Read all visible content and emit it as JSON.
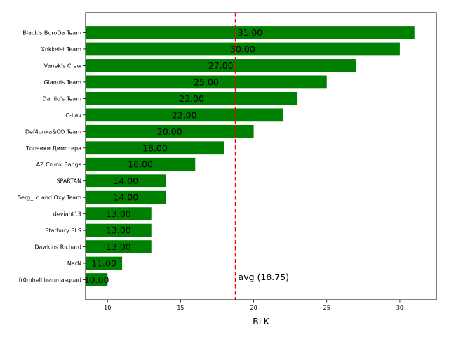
{
  "chart_data": {
    "type": "bar",
    "orientation": "horizontal",
    "title": "",
    "xlabel": "BLK",
    "ylabel": "",
    "xlim": [
      8.5,
      32.5
    ],
    "xticks": [
      10,
      15,
      20,
      25,
      30
    ],
    "grid": false,
    "bar_color": "#008000",
    "categories": [
      "Black's BoroDa Team",
      "Xokkeist Team",
      "Vanek's Crew",
      "Giannis Team",
      "Danilo's Team",
      "C-Lav",
      "Def4onka&CO Team",
      "Топчики Димстера",
      "AZ Crunk Bangs",
      "SPARTAN",
      "Serg_Lo and Oxy Team",
      "deviant13",
      "Starbury SLS",
      "Dawkins Richard",
      "NarN",
      "fr0mhell traumasquad"
    ],
    "values": [
      31,
      30,
      27,
      25,
      23,
      22,
      20,
      18,
      16,
      14,
      14,
      13,
      13,
      13,
      11,
      10
    ],
    "value_labels": [
      "31.00",
      "30.00",
      "27.00",
      "25.00",
      "23.00",
      "22.00",
      "20.00",
      "18.00",
      "16.00",
      "14.00",
      "14.00",
      "13.00",
      "13.00",
      "13.00",
      "11.00",
      "10.00"
    ],
    "average": {
      "value": 18.75,
      "label": "avg (18.75)",
      "color": "#ff0000"
    }
  }
}
